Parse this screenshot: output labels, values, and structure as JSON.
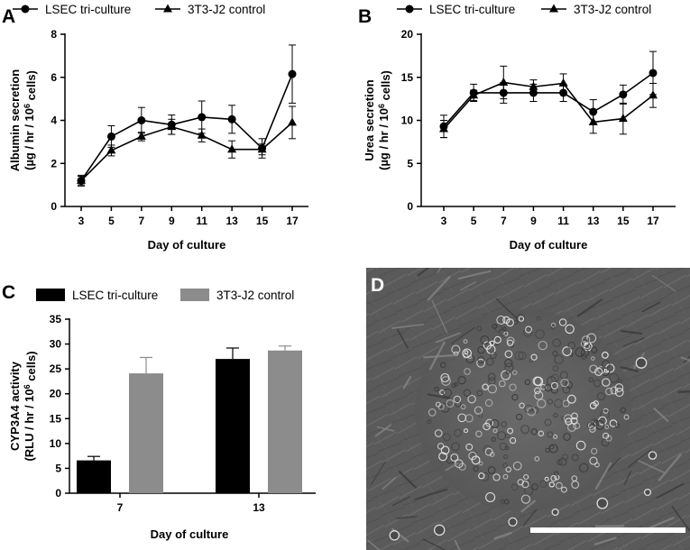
{
  "panels": {
    "A": "A",
    "B": "B",
    "C": "C",
    "D": "D"
  },
  "micrograph": {
    "description_label": "Phase-contrast micrograph"
  },
  "colors": {
    "lsec_line": "#000000",
    "j2_line": "#000000",
    "lsec_bar": "#000000",
    "j2_bar": "#8c8c8c",
    "micrograph_bg": "#5a5a5a",
    "scale_bar": "#ffffff"
  },
  "chart_data": [
    {
      "id": "A",
      "type": "line",
      "x": [
        3,
        5,
        7,
        9,
        11,
        13,
        15,
        17
      ],
      "xlabel": "Day of culture",
      "ylabel_line1": "Albumin secretion",
      "ylabel_line2_pre": "(µg / hr / 10",
      "ylabel_line2_sup": "6",
      "ylabel_line2_post": " cells)",
      "ylim": [
        0,
        8
      ],
      "yticks": [
        0,
        2,
        4,
        6,
        8
      ],
      "series": [
        {
          "name": "LSEC tri-culture",
          "marker": "circle",
          "values": [
            1.2,
            3.25,
            4.0,
            3.8,
            4.15,
            4.05,
            2.7,
            6.15
          ],
          "errors": [
            0.25,
            0.5,
            0.6,
            0.45,
            0.75,
            0.65,
            0.45,
            1.35
          ]
        },
        {
          "name": "3T3-J2 control",
          "marker": "triangle",
          "values": [
            1.2,
            2.6,
            3.25,
            3.7,
            3.3,
            2.65,
            2.65,
            3.9
          ],
          "errors": [
            0.2,
            0.25,
            0.2,
            0.35,
            0.3,
            0.4,
            0.25,
            0.75
          ]
        }
      ]
    },
    {
      "id": "B",
      "type": "line",
      "x": [
        3,
        5,
        7,
        9,
        11,
        13,
        15,
        17
      ],
      "xlabel": "Day of culture",
      "ylabel_line1": "Urea secretion",
      "ylabel_line2_pre": "(µg / hr / 10",
      "ylabel_line2_sup": "6",
      "ylabel_line2_post": " cells)",
      "ylim": [
        0,
        20
      ],
      "yticks": [
        0,
        5,
        10,
        15,
        20
      ],
      "series": [
        {
          "name": "LSEC tri-culture",
          "marker": "circle",
          "values": [
            9.3,
            13.2,
            13.2,
            13.2,
            13.2,
            11.0,
            13.0,
            15.5
          ],
          "errors": [
            1.3,
            1.0,
            1.2,
            1.0,
            1.0,
            1.4,
            1.1,
            2.5
          ]
        },
        {
          "name": "3T3-J2 control",
          "marker": "triangle",
          "values": [
            9.0,
            12.9,
            14.4,
            13.9,
            14.3,
            9.8,
            10.2,
            12.9
          ],
          "errors": [
            1.0,
            0.6,
            1.9,
            0.8,
            1.1,
            1.3,
            1.8,
            1.4
          ]
        }
      ]
    },
    {
      "id": "C",
      "type": "bar",
      "categories": [
        "7",
        "13"
      ],
      "xlabel": "Day of culture",
      "ylabel_line1": "CYP3A4 activity",
      "ylabel_line2_pre": "(RLU / hr / 10",
      "ylabel_line2_sup": "6",
      "ylabel_line2_post": " cells)",
      "ylim": [
        0,
        35
      ],
      "yticks": [
        0,
        5,
        10,
        15,
        20,
        25,
        30,
        35
      ],
      "series": [
        {
          "name": "LSEC tri-culture",
          "values": [
            6.6,
            27.0
          ],
          "errors": [
            0.8,
            2.2
          ]
        },
        {
          "name": "3T3-J2 control",
          "values": [
            24.1,
            28.7
          ],
          "errors": [
            3.2,
            0.9
          ]
        }
      ]
    }
  ]
}
